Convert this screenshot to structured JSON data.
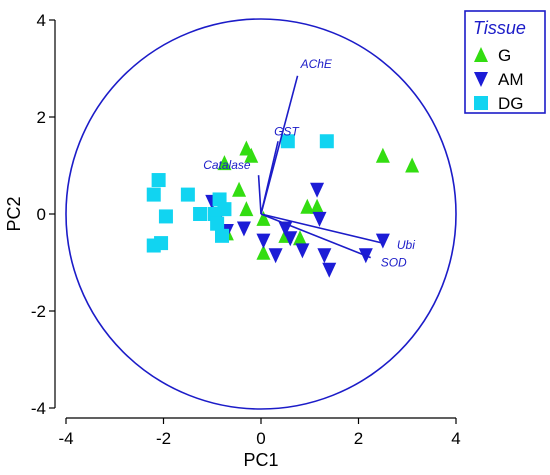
{
  "chart_data": {
    "type": "scatter",
    "title": "",
    "xlabel": "PC1",
    "ylabel": "PC2",
    "xlim": [
      -4,
      4
    ],
    "ylim": [
      -4,
      4
    ],
    "xticks": [
      -4,
      -2,
      0,
      2,
      4
    ],
    "yticks": [
      -4,
      -2,
      0,
      2,
      4
    ],
    "grid": false,
    "legend": {
      "title": "Tissue",
      "placement": "top-right"
    },
    "correlation_circle": {
      "center": [
        0,
        0
      ],
      "radius": 4
    },
    "series": [
      {
        "name": "G",
        "marker": "triangle-up",
        "color": "#33dd11",
        "points": [
          [
            -0.75,
            1.05
          ],
          [
            -0.3,
            1.35
          ],
          [
            -0.2,
            1.2
          ],
          [
            -0.45,
            0.5
          ],
          [
            -0.3,
            0.1
          ],
          [
            -0.7,
            -0.4
          ],
          [
            0.05,
            -0.1
          ],
          [
            0.05,
            -0.8
          ],
          [
            0.5,
            -0.45
          ],
          [
            0.8,
            -0.5
          ],
          [
            0.95,
            0.15
          ],
          [
            1.15,
            0.15
          ],
          [
            2.5,
            1.2
          ],
          [
            3.1,
            1.0
          ]
        ]
      },
      {
        "name": "AM",
        "marker": "triangle-down",
        "color": "#1c1cd6",
        "points": [
          [
            -1.0,
            0.25
          ],
          [
            -0.85,
            0.0
          ],
          [
            -0.7,
            -0.35
          ],
          [
            -0.35,
            -0.3
          ],
          [
            0.05,
            -0.55
          ],
          [
            0.3,
            -0.85
          ],
          [
            0.5,
            -0.3
          ],
          [
            0.6,
            -0.5
          ],
          [
            0.85,
            -0.75
          ],
          [
            1.15,
            0.5
          ],
          [
            1.2,
            -0.1
          ],
          [
            1.3,
            -0.85
          ],
          [
            1.4,
            -1.15
          ],
          [
            2.15,
            -0.85
          ],
          [
            2.5,
            -0.55
          ]
        ]
      },
      {
        "name": "DG",
        "marker": "square",
        "color": "#11d4f1",
        "points": [
          [
            -2.1,
            0.7
          ],
          [
            -2.2,
            0.4
          ],
          [
            -1.95,
            -0.05
          ],
          [
            -2.05,
            -0.6
          ],
          [
            -2.2,
            -0.65
          ],
          [
            -1.5,
            0.4
          ],
          [
            -1.25,
            0.0
          ],
          [
            -0.85,
            0.3
          ],
          [
            -0.75,
            0.1
          ],
          [
            -0.95,
            0.0
          ],
          [
            -0.9,
            -0.2
          ],
          [
            -0.8,
            -0.45
          ],
          [
            0.55,
            1.5
          ],
          [
            1.35,
            1.5
          ]
        ]
      }
    ],
    "loadings": [
      {
        "label": "AChE",
        "x": 0.75,
        "y": 2.85
      },
      {
        "label": "GST",
        "x": 0.35,
        "y": 1.5
      },
      {
        "label": "Catalase",
        "x": -0.05,
        "y": 0.8
      },
      {
        "label": "Ubi",
        "x": 2.5,
        "y": -0.6
      },
      {
        "label": "SOD",
        "x": 2.25,
        "y": -0.9
      }
    ],
    "colors": {
      "axis": "#000000",
      "circle": "#1c1cc8",
      "loading": "#1c1cc8",
      "legend_border": "#1c1cc8"
    }
  }
}
